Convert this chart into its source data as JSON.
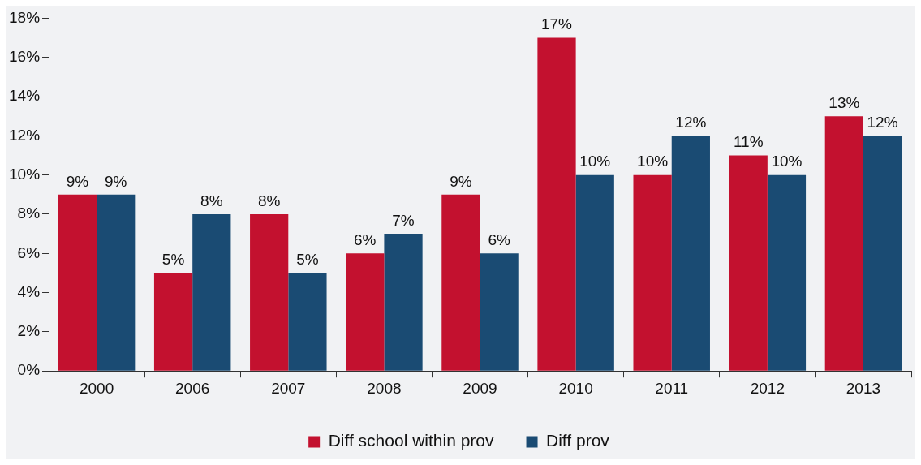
{
  "chart_data": {
    "type": "bar",
    "categories": [
      "2000",
      "2006",
      "2007",
      "2008",
      "2009",
      "2010",
      "2011",
      "2012",
      "2013"
    ],
    "series": [
      {
        "name": "Diff school within prov",
        "color": "#c3112f",
        "values": [
          9,
          5,
          8,
          6,
          9,
          17,
          10,
          11,
          13
        ],
        "value_labels": [
          "9%",
          "5%",
          "8%",
          "6%",
          "9%",
          "17%",
          "10%",
          "11%",
          "13%"
        ]
      },
      {
        "name": "Diff prov",
        "color": "#1a4b73",
        "values": [
          9,
          8,
          5,
          7,
          6,
          10,
          12,
          10,
          12
        ],
        "value_labels": [
          "9%",
          "8%",
          "5%",
          "7%",
          "6%",
          "10%",
          "12%",
          "10%",
          "12%"
        ]
      }
    ],
    "ylim": [
      0,
      18
    ],
    "yticks": [
      {
        "value": 0,
        "label": "0%"
      },
      {
        "value": 2,
        "label": "2%"
      },
      {
        "value": 4,
        "label": "4%"
      },
      {
        "value": 6,
        "label": "6%"
      },
      {
        "value": 8,
        "label": "8%"
      },
      {
        "value": 10,
        "label": "10%"
      },
      {
        "value": 12,
        "label": "12%"
      },
      {
        "value": 14,
        "label": "14%"
      },
      {
        "value": 16,
        "label": "16%"
      },
      {
        "value": 18,
        "label": "18%"
      }
    ],
    "grid": false,
    "legend": "bottom"
  }
}
